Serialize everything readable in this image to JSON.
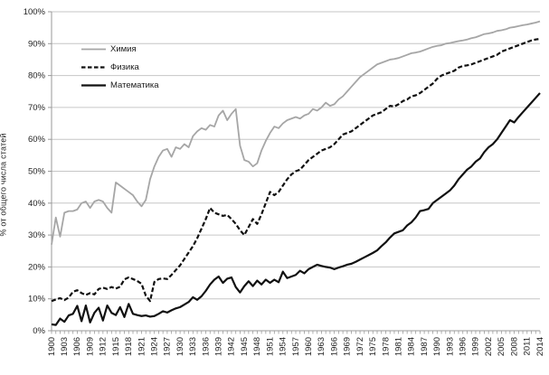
{
  "chart_data": {
    "type": "line",
    "title": "",
    "ylabel": "% от общего числа статей",
    "ylim": [
      0,
      100
    ],
    "y_tick_labels": [
      "0%",
      "10%",
      "20%",
      "30%",
      "40%",
      "50%",
      "60%",
      "70%",
      "80%",
      "90%",
      "100%"
    ],
    "x_range": [
      1900,
      2014
    ],
    "x_step": 1,
    "x_tick_years": [
      1900,
      1903,
      1906,
      1909,
      1912,
      1915,
      1918,
      1921,
      1924,
      1927,
      1930,
      1933,
      1936,
      1939,
      1942,
      1945,
      1948,
      1951,
      1954,
      1957,
      1960,
      1963,
      1966,
      1969,
      1972,
      1975,
      1978,
      1981,
      1984,
      1987,
      1990,
      1993,
      1996,
      1999,
      2002,
      2005,
      2008,
      2011,
      2014
    ],
    "grid": "horizontal",
    "legend_position": "inside-top-left",
    "colors": {
      "gridline": "#c6c6c6",
      "axis": "#9a9a9a",
      "tick_text": "#1f1f1f",
      "background": "#ffffff"
    },
    "series": [
      {
        "name": "Химия",
        "color": "#a6a6a6",
        "dash": "solid",
        "width": 1.8,
        "values": [
          27,
          35.5,
          29.5,
          37,
          37.5,
          37.5,
          38,
          40,
          40.5,
          38.5,
          40.5,
          41,
          40.5,
          38.5,
          37,
          46.5,
          45.5,
          44.5,
          43.5,
          42.5,
          40.5,
          39,
          41,
          47.5,
          51.5,
          54.5,
          56.5,
          57,
          54.5,
          57.5,
          57,
          58.5,
          57.5,
          61,
          62.5,
          63.5,
          63,
          64.5,
          64,
          67.5,
          69,
          66,
          68,
          69.5,
          58,
          53.5,
          53,
          51.5,
          52.5,
          56.5,
          59.5,
          62,
          64,
          63.5,
          65,
          66,
          66.5,
          67,
          66.5,
          67.5,
          68,
          69.5,
          69,
          70,
          71.5,
          70.5,
          71,
          72.5,
          73.5,
          75,
          76.5,
          78,
          79.5,
          80.5,
          81.5,
          82.5,
          83.5,
          84,
          84.5,
          85,
          85.2,
          85.5,
          86,
          86.5,
          87,
          87.2,
          87.5,
          88,
          88.5,
          89,
          89.3,
          89.5,
          90,
          90.2,
          90.5,
          90.8,
          91,
          91.3,
          91.7,
          92,
          92.5,
          93,
          93.2,
          93.5,
          94,
          94.2,
          94.5,
          95,
          95.2,
          95.5,
          95.8,
          96,
          96.3,
          96.6,
          97
        ]
      },
      {
        "name": "Физика",
        "color": "#111111",
        "dash": "dashed",
        "width": 2.2,
        "values": [
          9.3,
          9.8,
          10.2,
          9.6,
          10.4,
          12.2,
          12.7,
          11.8,
          11.2,
          11.8,
          11.4,
          13.1,
          13.5,
          13.1,
          13.7,
          13.2,
          13.8,
          16.1,
          16.7,
          16.2,
          15.6,
          14.7,
          11,
          9.3,
          15.3,
          16.2,
          16.4,
          16.2,
          17.5,
          19,
          20.5,
          22.5,
          24.5,
          26.5,
          29,
          32,
          35,
          38.5,
          37,
          36.5,
          36,
          36.3,
          35,
          33.5,
          31.5,
          30,
          32.5,
          35,
          33.5,
          36.5,
          40,
          43.5,
          42.5,
          43.5,
          45.5,
          47.5,
          49,
          50,
          50.5,
          52,
          53.5,
          54.5,
          55.5,
          56.5,
          57,
          57.5,
          58.5,
          60,
          61.5,
          62,
          62.5,
          63.5,
          64.5,
          65.5,
          66.5,
          67.5,
          68,
          68.5,
          69.5,
          70.5,
          70.3,
          71,
          72,
          72.5,
          73.5,
          73.8,
          74.5,
          75.5,
          76.5,
          77.5,
          79,
          80,
          80.5,
          81,
          81.5,
          82.5,
          83,
          83.2,
          83.5,
          84,
          84.5,
          85,
          85.5,
          86,
          86.5,
          87.5,
          88,
          88.5,
          89,
          89.5,
          90,
          90.5,
          91,
          91.3,
          91.5
        ]
      },
      {
        "name": "Математика",
        "color": "#111111",
        "dash": "solid",
        "width": 2.2,
        "values": [
          2,
          1.8,
          3.8,
          2.8,
          4.8,
          5.3,
          7.8,
          3,
          7.9,
          2.6,
          5.6,
          7.2,
          3.2,
          7.9,
          5.6,
          4.9,
          7.4,
          4.3,
          8.4,
          5.3,
          4.9,
          4.6,
          4.8,
          4.4,
          4.6,
          5.3,
          6.1,
          5.7,
          6.4,
          7,
          7.4,
          8.2,
          9,
          10.5,
          9.7,
          10.8,
          12.5,
          14.5,
          16,
          17,
          15,
          16.3,
          16.7,
          13.7,
          12,
          14,
          15.5,
          14,
          15.7,
          14.5,
          16,
          15,
          16,
          15.2,
          18.5,
          16.5,
          17,
          17.5,
          18.8,
          18,
          19.3,
          20,
          20.7,
          20.3,
          20,
          19.8,
          19.3,
          19.8,
          20.2,
          20.7,
          21,
          21.6,
          22.3,
          23,
          23.7,
          24.4,
          25.2,
          26.5,
          27.7,
          29.2,
          30.5,
          31,
          31.5,
          33,
          34,
          35.5,
          37.5,
          37.8,
          38.2,
          40,
          41,
          42,
          43,
          44,
          45.5,
          47.5,
          49,
          50.5,
          51.5,
          53,
          54,
          56,
          57.5,
          58.5,
          60,
          62,
          64,
          66,
          65.3,
          67,
          68.5,
          70,
          71.5,
          73,
          74.5
        ]
      }
    ]
  }
}
